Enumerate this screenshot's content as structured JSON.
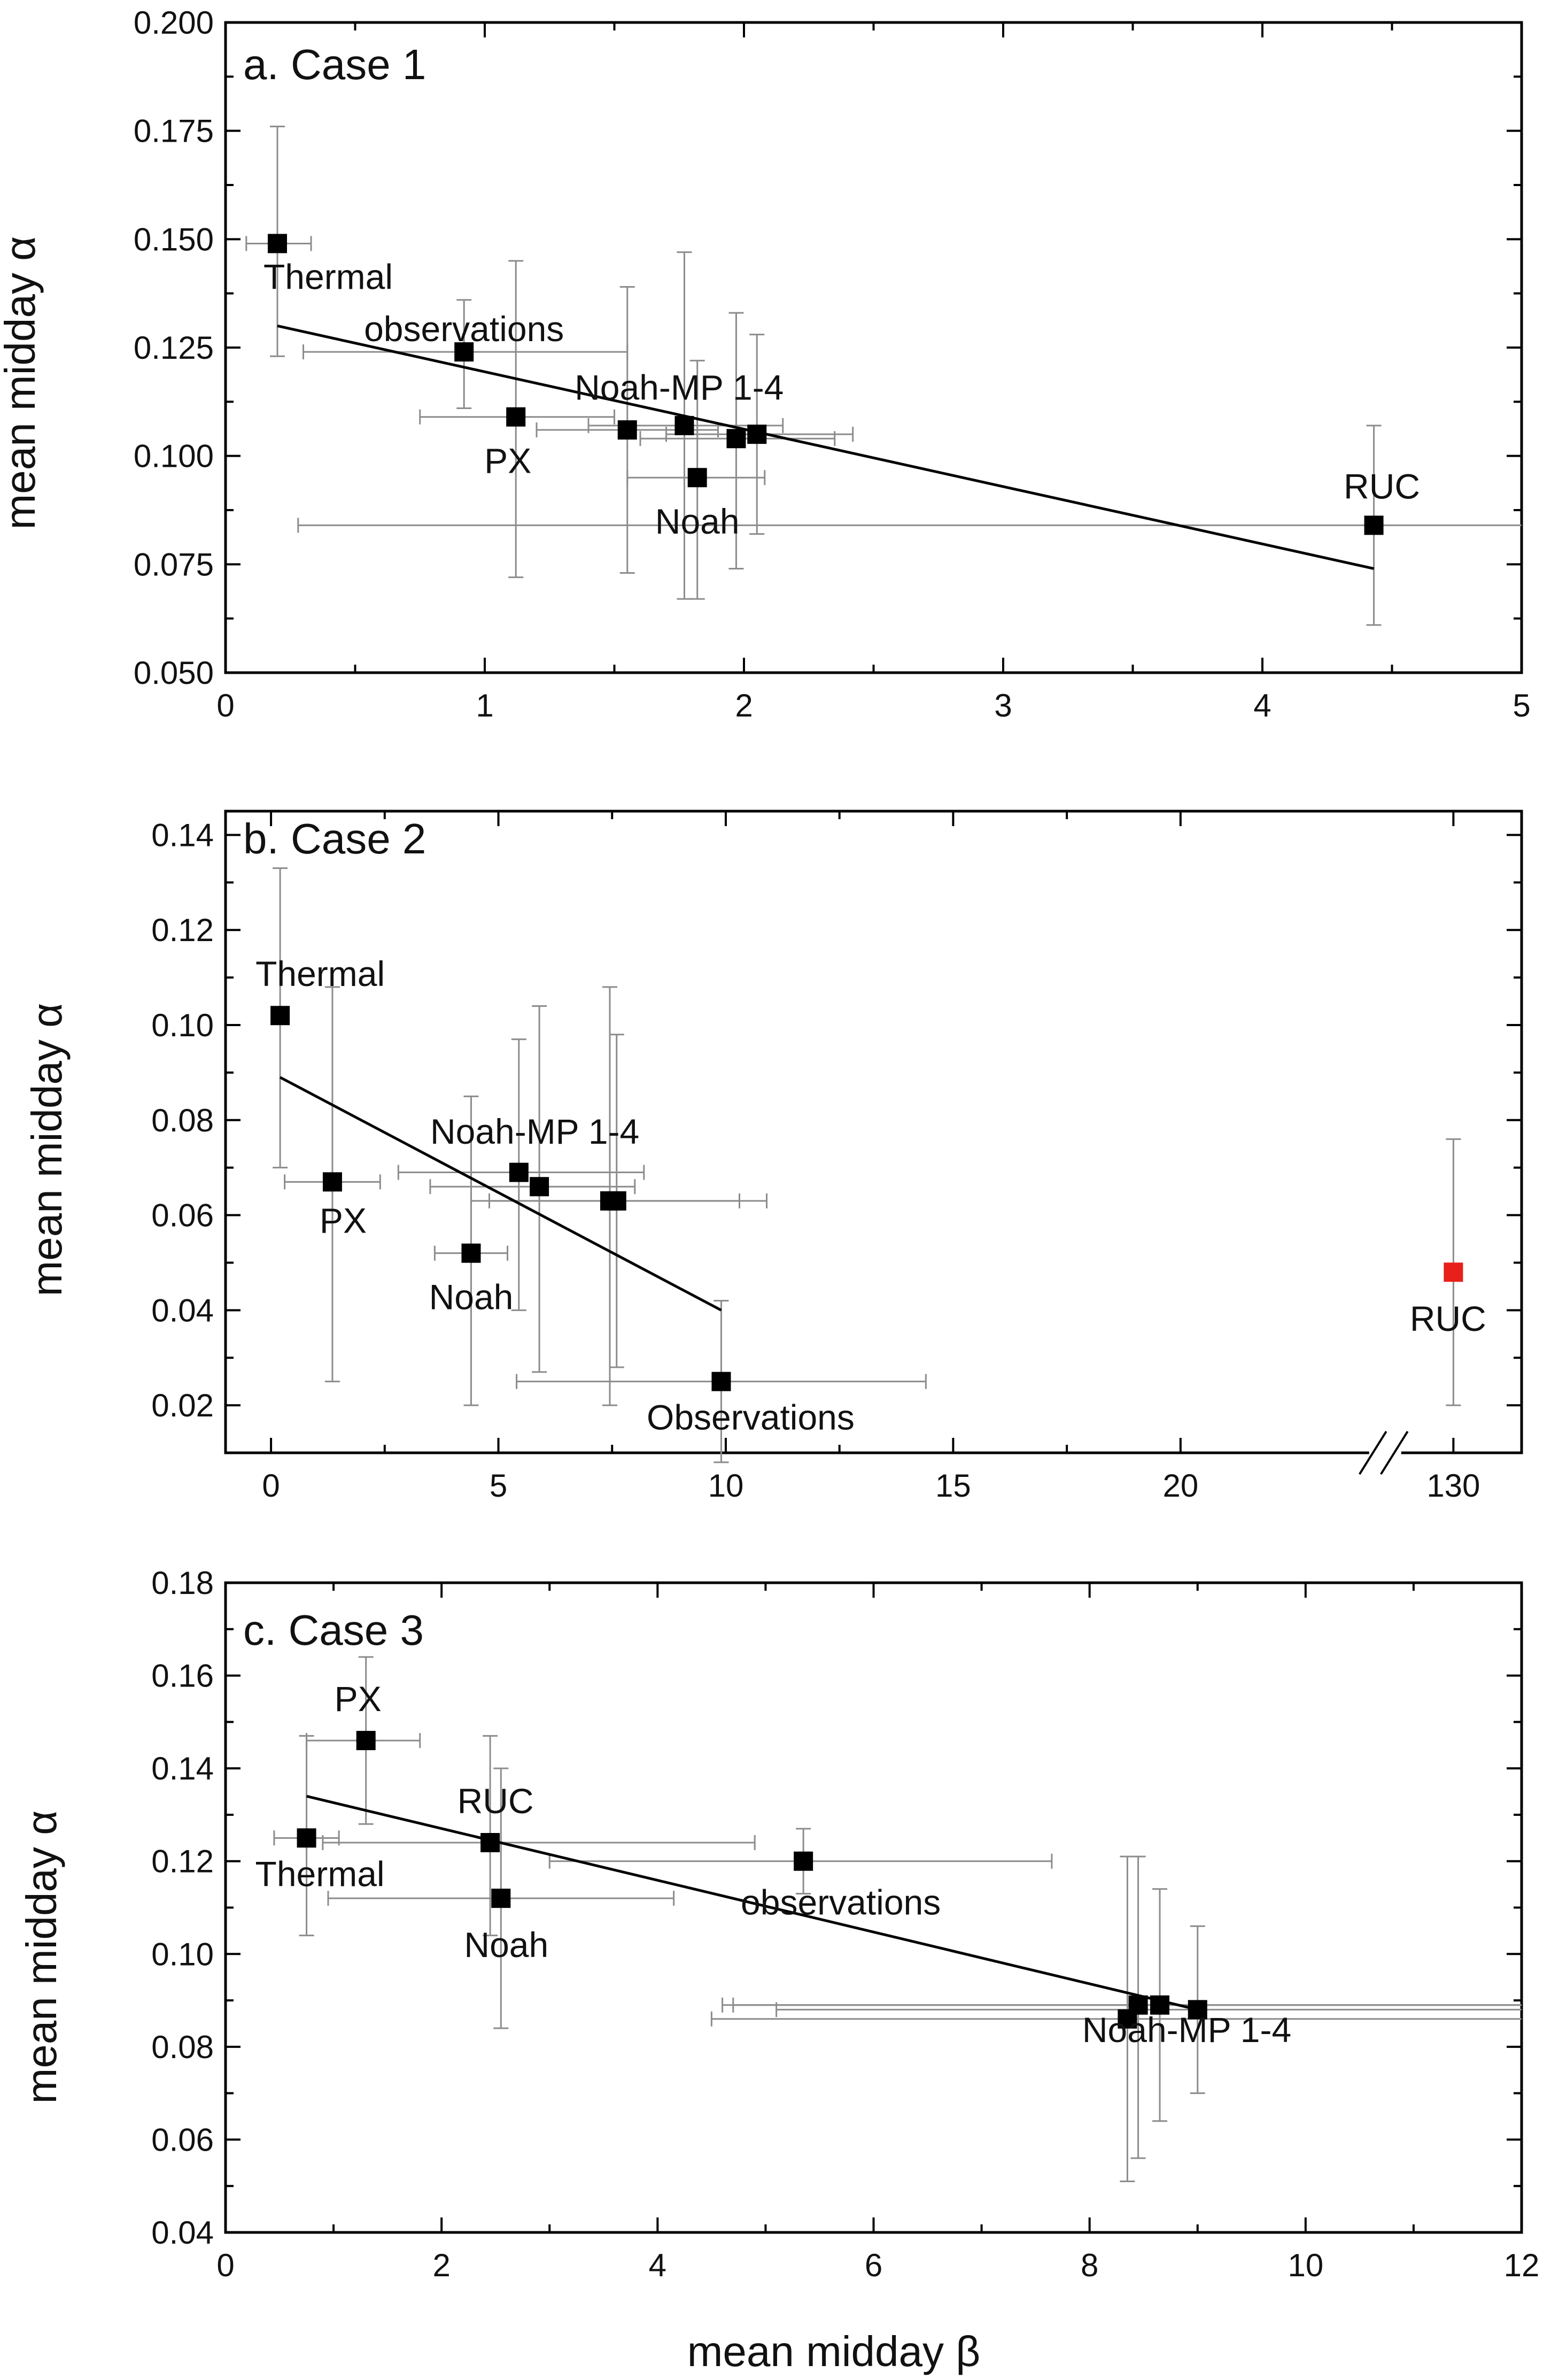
{
  "chart_data": [
    {
      "type": "scatter",
      "title": "a. Case 1",
      "xlabel": "",
      "ylabel": "mean midday α",
      "xlim": [
        0,
        5
      ],
      "ylim": [
        0.05,
        0.2
      ],
      "x_ticks": [
        "0",
        "1",
        "2",
        "3",
        "4",
        "5"
      ],
      "x_tick_values": [
        0,
        1,
        2,
        3,
        4,
        5
      ],
      "y_ticks": [
        "0.050",
        "0.075",
        "0.100",
        "0.125",
        "0.150",
        "0.175",
        "0.200"
      ],
      "y_tick_values": [
        0.05,
        0.075,
        0.1,
        0.125,
        0.15,
        0.175,
        0.2
      ],
      "points": [
        {
          "label": "Thermal",
          "x": 0.2,
          "y": 0.149,
          "xerr": [
            0.08,
            0.33
          ],
          "yerr": [
            0.123,
            0.176
          ],
          "color": "#000000"
        },
        {
          "label": "observations",
          "x": 0.92,
          "y": 0.124,
          "xerr": [
            0.3,
            1.55
          ],
          "yerr": [
            0.111,
            0.136
          ],
          "color": "#000000"
        },
        {
          "label": "PX",
          "x": 1.12,
          "y": 0.109,
          "xerr": [
            0.75,
            1.5
          ],
          "yerr": [
            0.072,
            0.145
          ],
          "color": "#000000"
        },
        {
          "label": "",
          "x": 1.55,
          "y": 0.106,
          "xerr": [
            1.2,
            1.9
          ],
          "yerr": [
            0.073,
            0.139
          ],
          "color": "#000000"
        },
        {
          "label": "",
          "x": 1.77,
          "y": 0.107,
          "xerr": [
            1.4,
            2.15
          ],
          "yerr": [
            0.067,
            0.147
          ],
          "color": "#000000"
        },
        {
          "label": "",
          "x": 1.97,
          "y": 0.104,
          "xerr": [
            1.6,
            2.35
          ],
          "yerr": [
            0.074,
            0.133
          ],
          "color": "#000000"
        },
        {
          "label": "",
          "x": 2.05,
          "y": 0.105,
          "xerr": [
            1.7,
            2.42
          ],
          "yerr": [
            0.082,
            0.128
          ],
          "color": "#000000"
        },
        {
          "label": "Noah",
          "x": 1.82,
          "y": 0.095,
          "xerr": [
            1.55,
            2.08
          ],
          "yerr": [
            0.067,
            0.122
          ],
          "color": "#000000"
        },
        {
          "label": "RUC",
          "x": 4.43,
          "y": 0.084,
          "xerr": [
            0.28,
            5.0
          ],
          "yerr": [
            0.061,
            0.107
          ],
          "color": "#000000"
        }
      ],
      "group_labels": [
        {
          "text": "Noah-MP 1-4",
          "x": 1.75,
          "y": 0.113
        }
      ],
      "fit_line": [
        [
          0.2,
          0.13
        ],
        [
          4.43,
          0.074
        ]
      ]
    },
    {
      "type": "scatter",
      "title": "b. Case 2",
      "xlabel": "",
      "ylabel": "mean midday α",
      "xlim": [
        -1,
        27.5
      ],
      "ylim": [
        0.01,
        0.145
      ],
      "x_ticks": [
        "0",
        "5",
        "10",
        "15",
        "20",
        "130"
      ],
      "x_tick_values": [
        0,
        5,
        10,
        15,
        20,
        26
      ],
      "axis_break": "x",
      "axis_break_at": 24.5,
      "y_ticks": [
        "0.02",
        "0.04",
        "0.06",
        "0.08",
        "0.10",
        "0.12",
        "0.14"
      ],
      "y_tick_values": [
        0.02,
        0.04,
        0.06,
        0.08,
        0.1,
        0.12,
        0.14
      ],
      "points": [
        {
          "label": "Thermal",
          "x": 0.2,
          "y": 0.102,
          "xerr": [
            0.2,
            0.2
          ],
          "yerr": [
            0.07,
            0.133
          ],
          "color": "#000000"
        },
        {
          "label": "PX",
          "x": 1.35,
          "y": 0.067,
          "xerr": [
            0.3,
            2.4
          ],
          "yerr": [
            0.025,
            0.108
          ],
          "color": "#000000"
        },
        {
          "label": "Noah",
          "x": 4.4,
          "y": 0.052,
          "xerr": [
            3.6,
            5.2
          ],
          "yerr": [
            0.02,
            0.085
          ],
          "color": "#000000"
        },
        {
          "label": "",
          "x": 5.45,
          "y": 0.069,
          "xerr": [
            2.8,
            8.2
          ],
          "yerr": [
            0.04,
            0.097
          ],
          "color": "#000000"
        },
        {
          "label": "",
          "x": 5.9,
          "y": 0.066,
          "xerr": [
            3.5,
            8.0
          ],
          "yerr": [
            0.027,
            0.104
          ],
          "color": "#000000"
        },
        {
          "label": "",
          "x": 7.45,
          "y": 0.063,
          "xerr": [
            4.8,
            10.3
          ],
          "yerr": [
            0.02,
            0.108
          ],
          "color": "#000000"
        },
        {
          "label": "",
          "x": 7.6,
          "y": 0.063,
          "xerr": [
            4.4,
            10.9
          ],
          "yerr": [
            0.028,
            0.098
          ],
          "color": "#000000"
        },
        {
          "label": "Observations",
          "x": 9.9,
          "y": 0.025,
          "xerr": [
            5.4,
            14.4
          ],
          "yerr": [
            0.008,
            0.042
          ],
          "color": "#000000"
        },
        {
          "label": "RUC",
          "x": 26,
          "y": 0.048,
          "xerr": [
            26,
            26
          ],
          "yerr": [
            0.02,
            0.076
          ],
          "color": "#e8201a"
        }
      ],
      "group_labels": [
        {
          "text": "Noah-MP 1-4",
          "x": 5.8,
          "y": 0.075
        }
      ],
      "fit_line": [
        [
          0.2,
          0.089
        ],
        [
          9.9,
          0.04
        ]
      ]
    },
    {
      "type": "scatter",
      "title": "c. Case 3",
      "xlabel": "mean midday β",
      "ylabel": "mean midday α",
      "xlim": [
        0,
        12
      ],
      "ylim": [
        0.04,
        0.18
      ],
      "x_ticks": [
        "0",
        "2",
        "4",
        "6",
        "8",
        "10",
        "12"
      ],
      "x_tick_values": [
        0,
        2,
        4,
        6,
        8,
        10,
        12
      ],
      "y_ticks": [
        "0.04",
        "0.06",
        "0.08",
        "0.10",
        "0.12",
        "0.14",
        "0.16",
        "0.18"
      ],
      "y_tick_values": [
        0.04,
        0.06,
        0.08,
        0.1,
        0.12,
        0.14,
        0.16,
        0.18
      ],
      "points": [
        {
          "label": "Thermal",
          "x": 0.75,
          "y": 0.125,
          "xerr": [
            0.45,
            1.05
          ],
          "yerr": [
            0.104,
            0.147
          ],
          "color": "#000000"
        },
        {
          "label": "PX",
          "x": 1.3,
          "y": 0.146,
          "xerr": [
            0.75,
            1.8
          ],
          "yerr": [
            0.128,
            0.164
          ],
          "color": "#000000"
        },
        {
          "label": "RUC",
          "x": 2.45,
          "y": 0.124,
          "xerr": [
            0.9,
            4.9
          ],
          "yerr": [
            0.104,
            0.147
          ],
          "color": "#000000"
        },
        {
          "label": "Noah",
          "x": 2.55,
          "y": 0.112,
          "xerr": [
            0.95,
            4.15
          ],
          "yerr": [
            0.084,
            0.14
          ],
          "color": "#000000"
        },
        {
          "label": "observations",
          "x": 5.35,
          "y": 0.12,
          "xerr": [
            3.0,
            7.65
          ],
          "yerr": [
            0.113,
            0.127
          ],
          "color": "#000000"
        },
        {
          "label": "",
          "x": 8.35,
          "y": 0.086,
          "xerr": [
            4.5,
            12.0
          ],
          "yerr": [
            0.051,
            0.121
          ],
          "color": "#000000"
        },
        {
          "label": "",
          "x": 8.45,
          "y": 0.089,
          "xerr": [
            4.6,
            12.0
          ],
          "yerr": [
            0.056,
            0.121
          ],
          "color": "#000000"
        },
        {
          "label": "",
          "x": 8.65,
          "y": 0.089,
          "xerr": [
            4.7,
            12.0
          ],
          "yerr": [
            0.064,
            0.114
          ],
          "color": "#000000"
        },
        {
          "label": "",
          "x": 9.0,
          "y": 0.088,
          "xerr": [
            5.1,
            12.0
          ],
          "yerr": [
            0.07,
            0.106
          ],
          "color": "#000000"
        }
      ],
      "group_labels": [
        {
          "text": "Noah-MP 1-4",
          "x": 8.9,
          "y": 0.081
        }
      ],
      "fit_line": [
        [
          0.75,
          0.134
        ],
        [
          9.0,
          0.088
        ]
      ]
    }
  ]
}
